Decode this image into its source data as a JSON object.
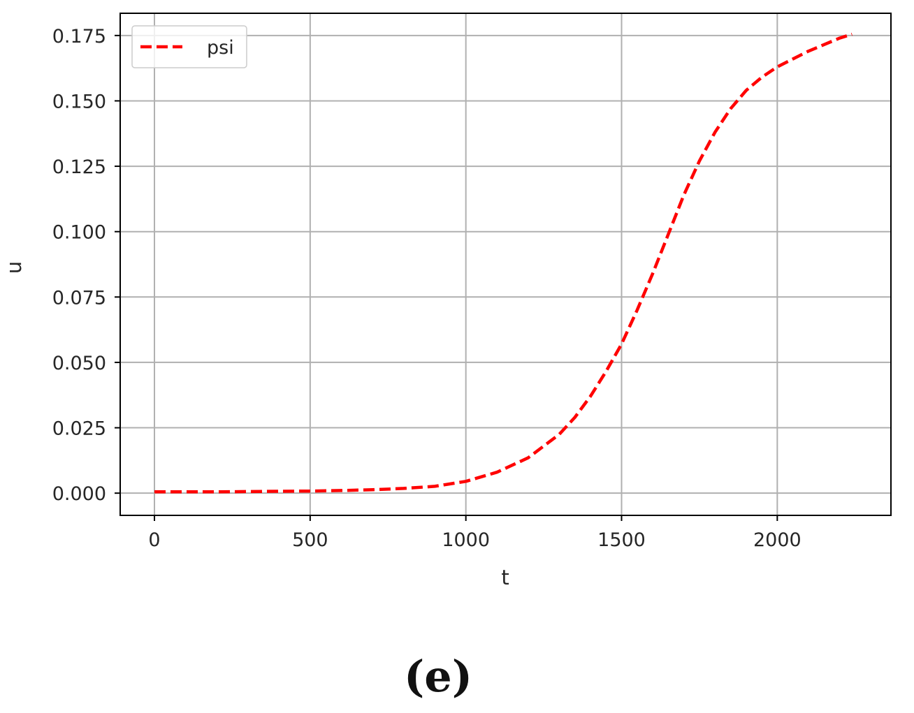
{
  "chart_data": {
    "type": "line",
    "xlabel": "t",
    "ylabel": "u",
    "xlim": [
      -110,
      2365
    ],
    "ylim": [
      -0.0085,
      0.1835
    ],
    "xticks": [
      0,
      500,
      1000,
      1500,
      2000
    ],
    "yticks": [
      0.0,
      0.025,
      0.05,
      0.075,
      0.1,
      0.125,
      0.15,
      0.175
    ],
    "xtick_labels": [
      "0",
      "500",
      "1000",
      "1500",
      "2000"
    ],
    "ytick_labels": [
      "0.000",
      "0.025",
      "0.050",
      "0.075",
      "0.100",
      "0.125",
      "0.150",
      "0.175"
    ],
    "grid": true,
    "legend_position": "top-left",
    "series": [
      {
        "name": "psi",
        "color": "#ff0000",
        "line_style": "dashed",
        "x": [
          0,
          100,
          200,
          300,
          400,
          500,
          600,
          700,
          800,
          900,
          1000,
          1100,
          1200,
          1300,
          1350,
          1400,
          1450,
          1500,
          1550,
          1600,
          1650,
          1700,
          1750,
          1800,
          1850,
          1900,
          1950,
          2000,
          2050,
          2100,
          2150,
          2200,
          2240
        ],
        "values": [
          0.0005,
          0.0005,
          0.0005,
          0.0006,
          0.0007,
          0.0008,
          0.001,
          0.0013,
          0.0018,
          0.0026,
          0.0045,
          0.008,
          0.0135,
          0.0225,
          0.029,
          0.037,
          0.0465,
          0.057,
          0.07,
          0.084,
          0.099,
          0.114,
          0.127,
          0.138,
          0.147,
          0.154,
          0.159,
          0.163,
          0.166,
          0.169,
          0.1715,
          0.174,
          0.1755
        ]
      }
    ]
  },
  "panel_label": "(e)"
}
